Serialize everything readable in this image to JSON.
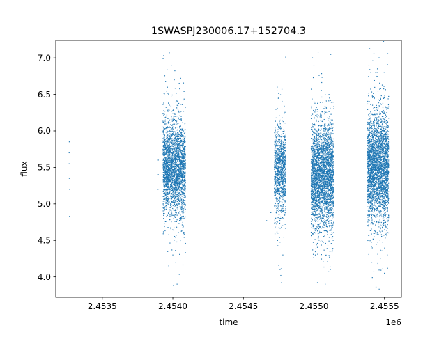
{
  "chart_data": {
    "type": "scatter",
    "title": "1SWASPJ230006.17+152704.3",
    "xlabel": "time",
    "ylabel": "flux",
    "x_offset_label": "1e6",
    "xlim": [
      2453170,
      2455620
    ],
    "ylim": [
      3.72,
      7.24
    ],
    "x_ticks": [
      2453500,
      2454000,
      2454500,
      2455000,
      2455500
    ],
    "x_tick_labels": [
      "2.4535",
      "2.4540",
      "2.4545",
      "2.4550",
      "2.4555"
    ],
    "y_ticks": [
      4.0,
      4.5,
      5.0,
      5.5,
      6.0,
      6.5,
      7.0
    ],
    "y_tick_labels": [
      "4.0",
      "4.5",
      "5.0",
      "5.5",
      "6.0",
      "6.5",
      "7.0"
    ],
    "grid": false,
    "marker_color": "#1f77b4",
    "series": [
      {
        "points": [
          [
            2453265,
            5.55
          ],
          [
            2453266,
            5.85
          ],
          [
            2453266,
            5.35
          ],
          [
            2453267,
            5.2
          ],
          [
            2453265,
            5.7
          ],
          [
            2453268,
            4.83
          ],
          [
            2453897,
            5.4
          ],
          [
            2453897,
            5.6
          ],
          [
            2453895,
            5.2
          ],
          [
            2453955,
            5.9
          ],
          [
            2453960,
            5.4
          ],
          [
            2453970,
            6.5
          ],
          [
            2453975,
            7.07
          ],
          [
            2453980,
            4.95
          ],
          [
            2453990,
            6.9
          ],
          [
            2454000,
            4.3
          ],
          [
            2454005,
            3.88
          ],
          [
            2454010,
            6.7
          ],
          [
            2454020,
            4.2
          ],
          [
            2454030,
            3.9
          ],
          [
            2454035,
            6.3
          ],
          [
            2454060,
            6.2
          ],
          [
            2454070,
            5.85
          ],
          [
            2454075,
            4.7
          ],
          [
            2454090,
            5.3
          ],
          [
            2454665,
            4.77
          ],
          [
            2454695,
            4.88
          ],
          [
            2454720,
            5.5
          ],
          [
            2454740,
            6.6
          ],
          [
            2454745,
            4.6
          ],
          [
            2454760,
            4.1
          ],
          [
            2454770,
            3.92
          ],
          [
            2454780,
            4.3
          ],
          [
            2454800,
            7.01
          ],
          [
            2454990,
            7.0
          ],
          [
            2455000,
            6.9
          ],
          [
            2455010,
            4.3
          ],
          [
            2455025,
            3.92
          ],
          [
            2455030,
            7.08
          ],
          [
            2455050,
            4.5
          ],
          [
            2455080,
            3.9
          ],
          [
            2455110,
            6.45
          ],
          [
            2455130,
            4.6
          ],
          [
            2455390,
            6.9
          ],
          [
            2455410,
            4.2
          ],
          [
            2455425,
            7.06
          ],
          [
            2455440,
            3.86
          ],
          [
            2455450,
            6.85
          ],
          [
            2455470,
            4.25
          ],
          [
            2455490,
            6.3
          ],
          [
            2455500,
            4.05
          ],
          [
            2455520,
            4.3
          ]
        ]
      }
    ],
    "clusters": [
      {
        "x_range": [
          2453930,
          2454090
        ],
        "y_center": 5.5,
        "y_spread": 0.32,
        "count": 2600
      },
      {
        "x_range": [
          2454720,
          2454800
        ],
        "y_center": 5.45,
        "y_spread": 0.3,
        "count": 1000
      },
      {
        "x_range": [
          2454980,
          2455140
        ],
        "y_center": 5.4,
        "y_spread": 0.36,
        "count": 3000
      },
      {
        "x_range": [
          2455380,
          2455530
        ],
        "y_center": 5.5,
        "y_spread": 0.38,
        "count": 3000
      }
    ]
  }
}
